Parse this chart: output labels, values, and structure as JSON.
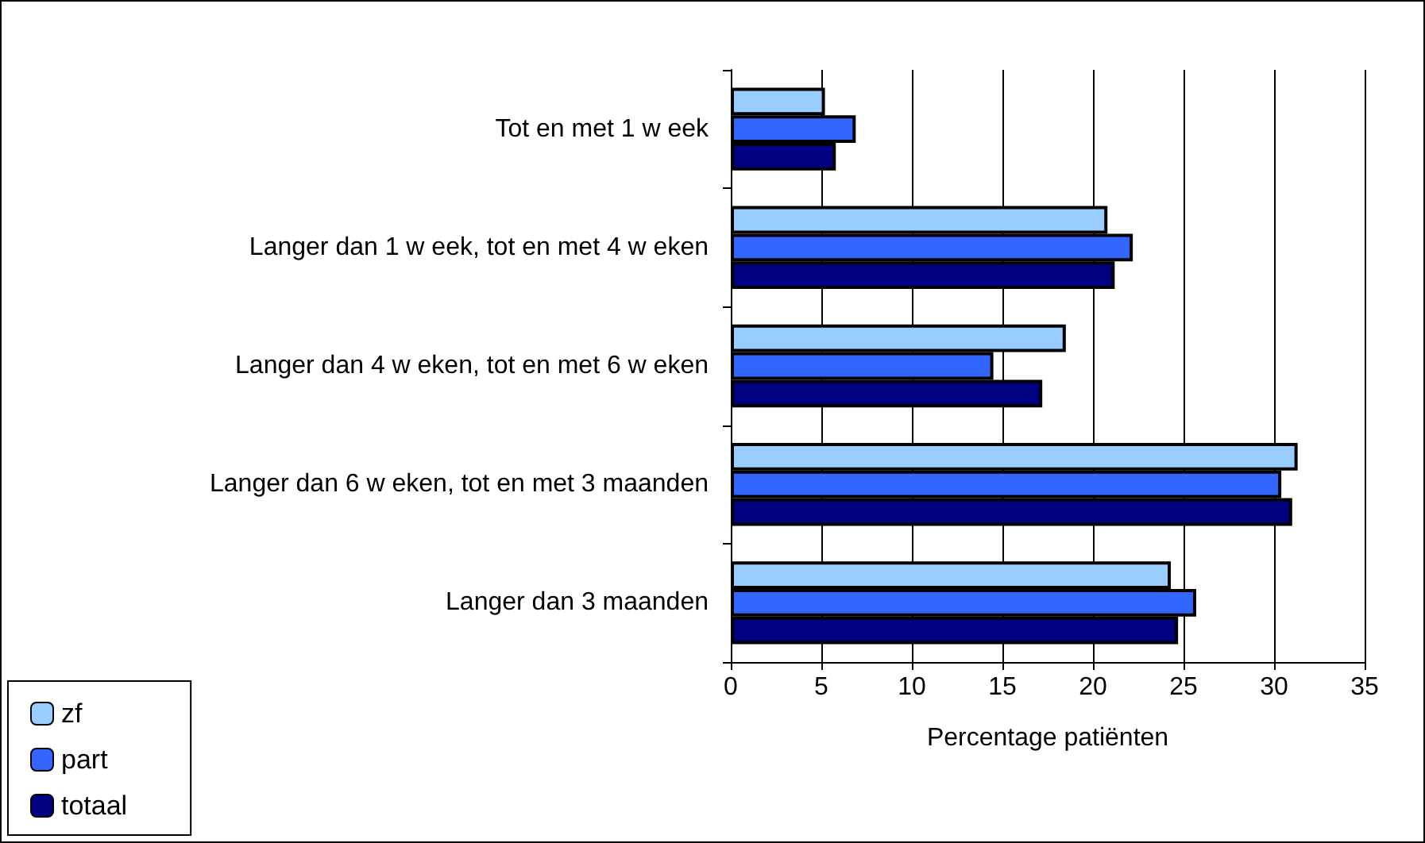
{
  "chart_data": {
    "type": "bar",
    "orientation": "horizontal",
    "xlabel": "Percentage patiënten",
    "categories": [
      "Tot en met 1 w eek",
      "Langer dan 1 w eek, tot en met 4 w eken",
      "Langer dan 4 w eken, tot en met 6 w eken",
      "Langer dan 6 w eken, tot en met 3 maanden",
      "Langer dan 3 maanden"
    ],
    "series": [
      {
        "name": "zf",
        "color": "#99ccff",
        "values": [
          5.2,
          20.8,
          18.5,
          31.3,
          24.3
        ]
      },
      {
        "name": "part",
        "color": "#3366ff",
        "values": [
          6.9,
          22.2,
          14.5,
          30.4,
          25.7
        ]
      },
      {
        "name": "totaal",
        "color": "#000080",
        "values": [
          5.8,
          21.2,
          17.2,
          31.0,
          24.7
        ]
      }
    ],
    "xlim": [
      0,
      35
    ],
    "xticks": [
      0,
      5,
      10,
      15,
      20,
      25,
      30,
      35
    ],
    "grid": "x",
    "legend": "bottom left"
  }
}
